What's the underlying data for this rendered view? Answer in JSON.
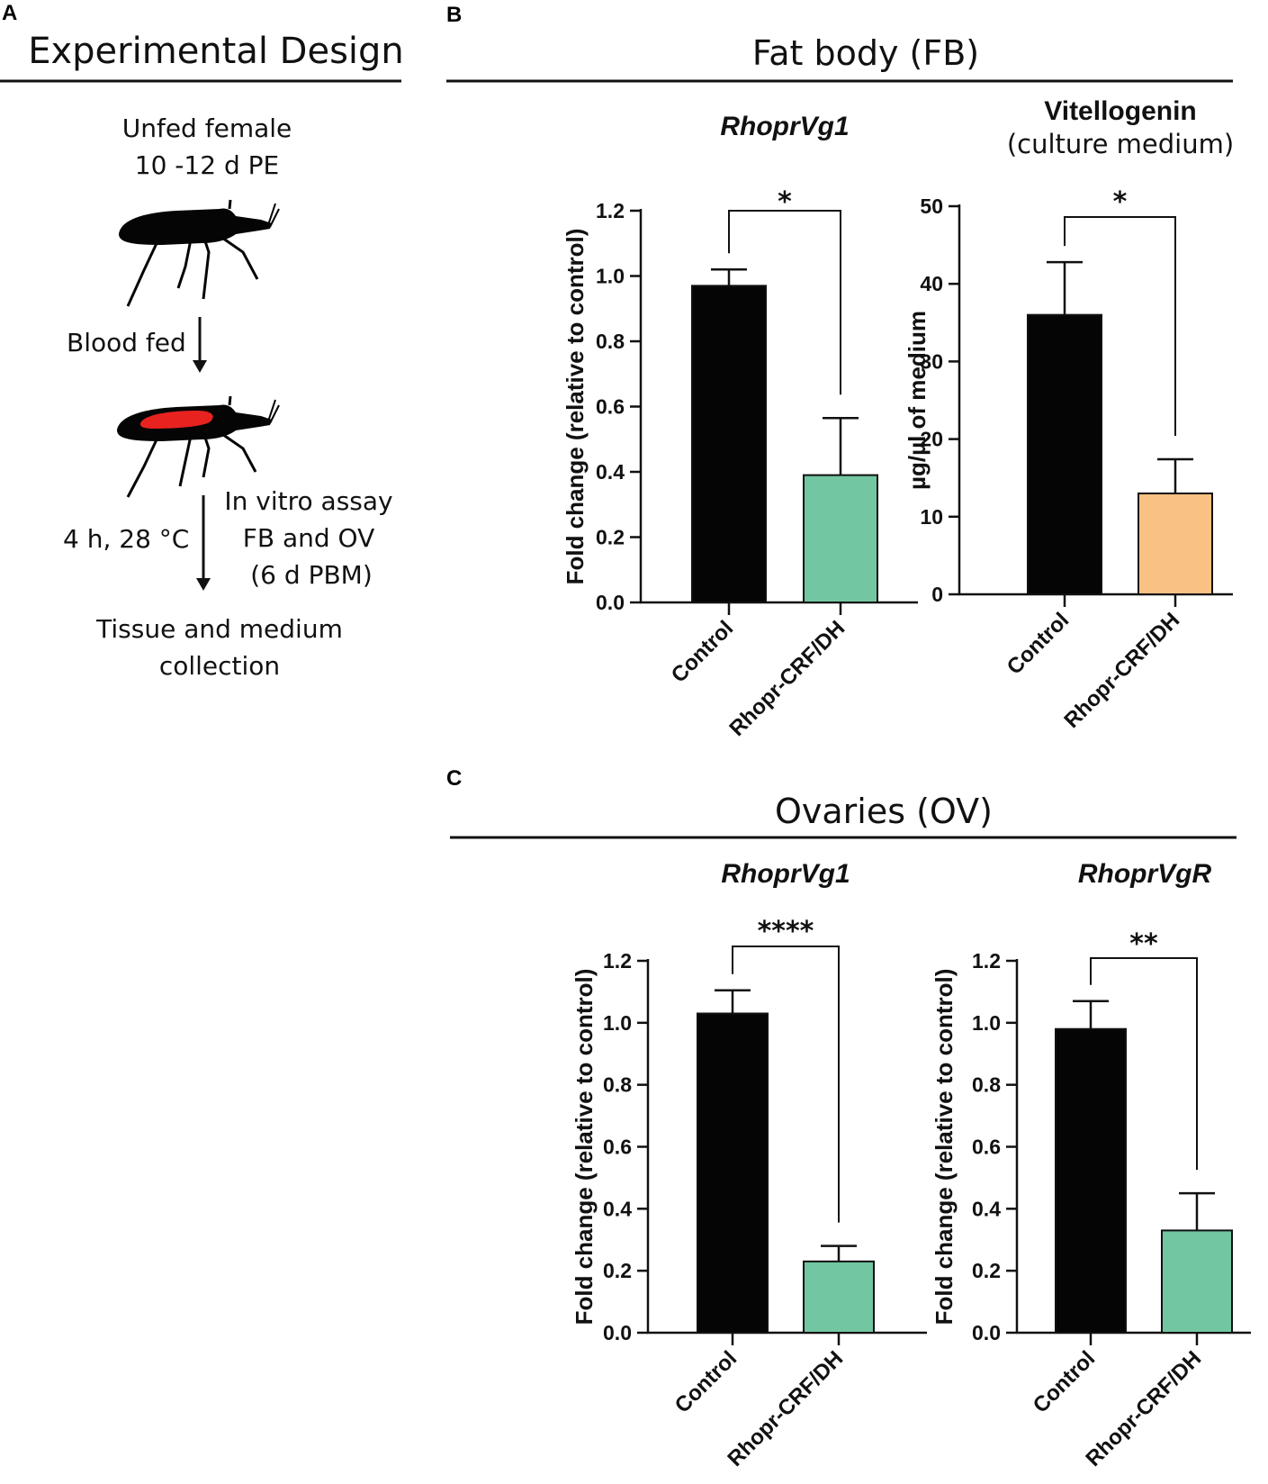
{
  "panel_a": {
    "letter": "A",
    "title": "Experimental  Design",
    "line1": "Unfed female",
    "line2": "10 -12 d PE",
    "step1": "Blood fed",
    "step2_left": "4 h, 28 °C",
    "step2_right": [
      "In vitro assay",
      "FB and OV",
      "(6 d PBM)"
    ],
    "end": [
      "Tissue and medium",
      "collection"
    ]
  },
  "panel_b": {
    "letter": "B",
    "title": "Fat body (FB)"
  },
  "panel_c": {
    "letter": "C",
    "title": "Ovaries (OV)"
  },
  "colors": {
    "black_bar": "#050505",
    "green_bar": "#72c6a1",
    "orange_bar": "#f9c182"
  },
  "chart_data": [
    {
      "type": "bar",
      "title": "RhoprVg1",
      "title_italic": true,
      "subtitle": "",
      "ylabel": "Fold change (relative to control)",
      "categories": [
        "Control",
        "Rhopr-CRF/DH"
      ],
      "values": [
        0.97,
        0.39
      ],
      "errors": [
        0.05,
        0.175
      ],
      "bar_colors": [
        "#050505",
        "#72c6a1"
      ],
      "ylim": [
        0,
        1.2
      ],
      "yticks": [
        0,
        0.2,
        0.4,
        0.6,
        0.8,
        1.0,
        1.2
      ],
      "ytick_labels": [
        "0.0",
        "0.2",
        "0.4",
        "0.6",
        "0.8",
        "1.0",
        "1.2"
      ],
      "significance": "*"
    },
    {
      "type": "bar",
      "title": "Vitellogenin",
      "title_italic": false,
      "subtitle": "(culture medium)",
      "ylabel": "µg/µl of medium",
      "categories": [
        "Control",
        "Rhopr-CRF/DH"
      ],
      "values": [
        36,
        13
      ],
      "errors": [
        6.8,
        4.4
      ],
      "bar_colors": [
        "#050505",
        "#f9c182"
      ],
      "ylim": [
        0,
        50
      ],
      "yticks": [
        0,
        10,
        20,
        30,
        40,
        50
      ],
      "ytick_labels": [
        "0",
        "10",
        "20",
        "30",
        "40",
        "50"
      ],
      "significance": "*"
    },
    {
      "type": "bar",
      "title": "RhoprVg1",
      "title_italic": true,
      "subtitle": "",
      "ylabel": "Fold change (relative to control)",
      "categories": [
        "Control",
        "Rhopr-CRF/DH"
      ],
      "values": [
        1.03,
        0.23
      ],
      "errors": [
        0.075,
        0.05
      ],
      "bar_colors": [
        "#050505",
        "#72c6a1"
      ],
      "ylim": [
        0,
        1.2
      ],
      "yticks": [
        0,
        0.2,
        0.4,
        0.6,
        0.8,
        1.0,
        1.2
      ],
      "ytick_labels": [
        "0.0",
        "0.2",
        "0.4",
        "0.6",
        "0.8",
        "1.0",
        "1.2"
      ],
      "significance": "****"
    },
    {
      "type": "bar",
      "title": "RhoprVgR",
      "title_italic": true,
      "subtitle": "",
      "ylabel": "Fold change (relative to control)",
      "categories": [
        "Control",
        "Rhopr-CRF/DH"
      ],
      "values": [
        0.98,
        0.33
      ],
      "errors": [
        0.09,
        0.12
      ],
      "bar_colors": [
        "#050505",
        "#72c6a1"
      ],
      "ylim": [
        0,
        1.2
      ],
      "yticks": [
        0,
        0.2,
        0.4,
        0.6,
        0.8,
        1.0,
        1.2
      ],
      "ytick_labels": [
        "0.0",
        "0.2",
        "0.4",
        "0.6",
        "0.8",
        "1.0",
        "1.2"
      ],
      "significance": "**"
    }
  ]
}
